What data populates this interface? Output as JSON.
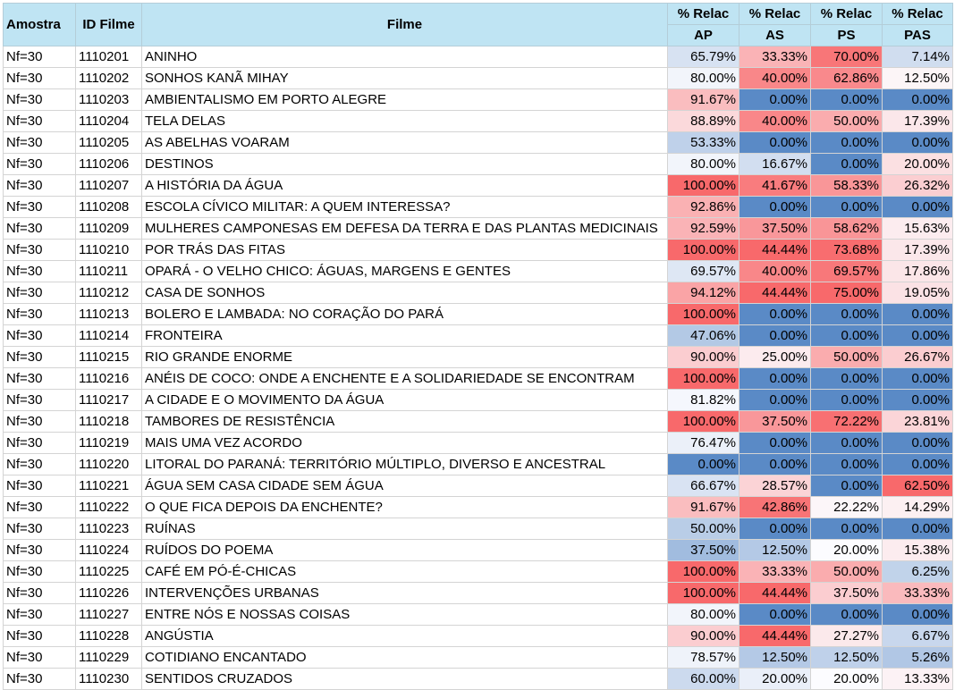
{
  "headers": {
    "amostra": "Amostra",
    "id_filme": "ID Filme",
    "filme": "Filme",
    "pct_line1": "% Relac",
    "ap": "AP",
    "as": "AS",
    "ps": "PS",
    "pas": "PAS"
  },
  "rows": [
    {
      "amostra": "Nf=30",
      "id": "1110201",
      "filme": "ANINHO",
      "ap": "65.79%",
      "as": "33.33%",
      "ps": "70.00%",
      "pas": "7.14%"
    },
    {
      "amostra": "Nf=30",
      "id": "1110202",
      "filme": "SONHOS KANÃ MIHAY",
      "ap": "80.00%",
      "as": "40.00%",
      "ps": "62.86%",
      "pas": "12.50%"
    },
    {
      "amostra": "Nf=30",
      "id": "1110203",
      "filme": "AMBIENTALISMO EM PORTO ALEGRE",
      "ap": "91.67%",
      "as": "0.00%",
      "ps": "0.00%",
      "pas": "0.00%"
    },
    {
      "amostra": "Nf=30",
      "id": "1110204",
      "filme": "TELA DELAS",
      "ap": "88.89%",
      "as": "40.00%",
      "ps": "50.00%",
      "pas": "17.39%"
    },
    {
      "amostra": "Nf=30",
      "id": "1110205",
      "filme": "AS ABELHAS VOARAM",
      "ap": "53.33%",
      "as": "0.00%",
      "ps": "0.00%",
      "pas": "0.00%"
    },
    {
      "amostra": "Nf=30",
      "id": "1110206",
      "filme": "DESTINOS",
      "ap": "80.00%",
      "as": "16.67%",
      "ps": "0.00%",
      "pas": "20.00%"
    },
    {
      "amostra": "Nf=30",
      "id": "1110207",
      "filme": "A HISTÓRIA DA ÁGUA",
      "ap": "100.00%",
      "as": "41.67%",
      "ps": "58.33%",
      "pas": "26.32%"
    },
    {
      "amostra": "Nf=30",
      "id": "1110208",
      "filme": "ESCOLA CÍVICO MILITAR: A QUEM INTERESSA?",
      "ap": "92.86%",
      "as": "0.00%",
      "ps": "0.00%",
      "pas": "0.00%"
    },
    {
      "amostra": "Nf=30",
      "id": "1110209",
      "filme": "MULHERES CAMPONESAS EM DEFESA DA TERRA E DAS PLANTAS MEDICINAIS",
      "ap": "92.59%",
      "as": "37.50%",
      "ps": "58.62%",
      "pas": "15.63%"
    },
    {
      "amostra": "Nf=30",
      "id": "1110210",
      "filme": "POR TRÁS DAS FITAS",
      "ap": "100.00%",
      "as": "44.44%",
      "ps": "73.68%",
      "pas": "17.39%"
    },
    {
      "amostra": "Nf=30",
      "id": "1110211",
      "filme": "OPARÁ - O VELHO CHICO: ÁGUAS, MARGENS E GENTES",
      "ap": "69.57%",
      "as": "40.00%",
      "ps": "69.57%",
      "pas": "17.86%"
    },
    {
      "amostra": "Nf=30",
      "id": "1110212",
      "filme": "CASA DE SONHOS",
      "ap": "94.12%",
      "as": "44.44%",
      "ps": "75.00%",
      "pas": "19.05%"
    },
    {
      "amostra": "Nf=30",
      "id": "1110213",
      "filme": "BOLERO E LAMBADA: NO CORAÇÃO DO PARÁ",
      "ap": "100.00%",
      "as": "0.00%",
      "ps": "0.00%",
      "pas": "0.00%"
    },
    {
      "amostra": "Nf=30",
      "id": "1110214",
      "filme": "FRONTEIRA",
      "ap": "47.06%",
      "as": "0.00%",
      "ps": "0.00%",
      "pas": "0.00%"
    },
    {
      "amostra": "Nf=30",
      "id": "1110215",
      "filme": "RIO GRANDE ENORME",
      "ap": "90.00%",
      "as": "25.00%",
      "ps": "50.00%",
      "pas": "26.67%"
    },
    {
      "amostra": "Nf=30",
      "id": "1110216",
      "filme": "ANÉIS DE COCO: ONDE A ENCHENTE E A SOLIDARIEDADE SE ENCONTRAM",
      "ap": "100.00%",
      "as": "0.00%",
      "ps": "0.00%",
      "pas": "0.00%"
    },
    {
      "amostra": "Nf=30",
      "id": "1110217",
      "filme": "A CIDADE E O MOVIMENTO DA ÁGUA",
      "ap": "81.82%",
      "as": "0.00%",
      "ps": "0.00%",
      "pas": "0.00%"
    },
    {
      "amostra": "Nf=30",
      "id": "1110218",
      "filme": "TAMBORES DE RESISTÊNCIA",
      "ap": "100.00%",
      "as": "37.50%",
      "ps": "72.22%",
      "pas": "23.81%"
    },
    {
      "amostra": "Nf=30",
      "id": "1110219",
      "filme": "MAIS UMA VEZ ACORDO",
      "ap": "76.47%",
      "as": "0.00%",
      "ps": "0.00%",
      "pas": "0.00%"
    },
    {
      "amostra": "Nf=30",
      "id": "1110220",
      "filme": "LITORAL DO PARANÁ: TERRITÓRIO MÚLTIPLO, DIVERSO E ANCESTRAL",
      "ap": "0.00%",
      "as": "0.00%",
      "ps": "0.00%",
      "pas": "0.00%"
    },
    {
      "amostra": "Nf=30",
      "id": "1110221",
      "filme": "ÁGUA SEM CASA CIDADE SEM ÁGUA",
      "ap": "66.67%",
      "as": "28.57%",
      "ps": "0.00%",
      "pas": "62.50%"
    },
    {
      "amostra": "Nf=30",
      "id": "1110222",
      "filme": "O QUE FICA DEPOIS DA ENCHENTE?",
      "ap": "91.67%",
      "as": "42.86%",
      "ps": "22.22%",
      "pas": "14.29%"
    },
    {
      "amostra": "Nf=30",
      "id": "1110223",
      "filme": "RUÍNAS",
      "ap": "50.00%",
      "as": "0.00%",
      "ps": "0.00%",
      "pas": "0.00%"
    },
    {
      "amostra": "Nf=30",
      "id": "1110224",
      "filme": "RUÍDOS DO POEMA",
      "ap": "37.50%",
      "as": "12.50%",
      "ps": "20.00%",
      "pas": "15.38%"
    },
    {
      "amostra": "Nf=30",
      "id": "1110225",
      "filme": "CAFÉ EM PÓ-É-CHICAS",
      "ap": "100.00%",
      "as": "33.33%",
      "ps": "50.00%",
      "pas": "6.25%"
    },
    {
      "amostra": "Nf=30",
      "id": "1110226",
      "filme": "INTERVENÇÕES URBANAS",
      "ap": "100.00%",
      "as": "44.44%",
      "ps": "37.50%",
      "pas": "33.33%"
    },
    {
      "amostra": "Nf=30",
      "id": "1110227",
      "filme": "ENTRE NÓS E NOSSAS COISAS",
      "ap": "80.00%",
      "as": "0.00%",
      "ps": "0.00%",
      "pas": "0.00%"
    },
    {
      "amostra": "Nf=30",
      "id": "1110228",
      "filme": "ANGÚSTIA",
      "ap": "90.00%",
      "as": "44.44%",
      "ps": "27.27%",
      "pas": "6.67%"
    },
    {
      "amostra": "Nf=30",
      "id": "1110229",
      "filme": "COTIDIANO ENCANTADO",
      "ap": "78.57%",
      "as": "12.50%",
      "ps": "12.50%",
      "pas": "5.26%"
    },
    {
      "amostra": "Nf=30",
      "id": "1110230",
      "filme": "SENTIDOS CRUZADOS",
      "ap": "60.00%",
      "as": "20.00%",
      "ps": "20.00%",
      "pas": "13.33%"
    }
  ],
  "colors": {
    "header_bg": "#bfe4f3",
    "scale_low": "#5a8ac6",
    "scale_mid": "#fcfcff",
    "scale_high": "#f8696b"
  }
}
